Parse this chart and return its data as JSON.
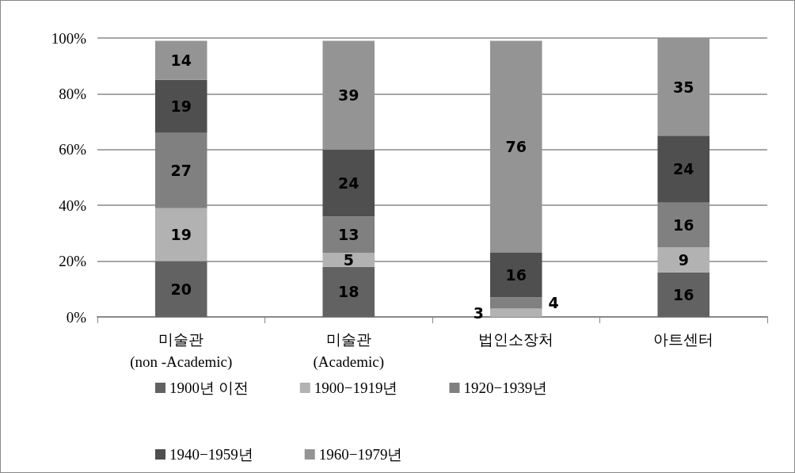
{
  "chart_data": {
    "type": "bar",
    "stacked": true,
    "data_labels": true,
    "grid": "y",
    "legend": "bottom",
    "categories": [
      "미술관\n(non -Academic)",
      "미술관\n(Academic)",
      "법인소장처",
      "아트센터"
    ],
    "ylim": [
      0,
      100
    ],
    "yticks": [
      {
        "value": 0,
        "label": "0%"
      },
      {
        "value": 20,
        "label": "20%"
      },
      {
        "value": 40,
        "label": "40%"
      },
      {
        "value": 60,
        "label": "60%"
      },
      {
        "value": 80,
        "label": "80%"
      },
      {
        "value": 100,
        "label": "100%"
      }
    ],
    "series": [
      {
        "name": "1900년 이전",
        "color": "#626262",
        "values": [
          20,
          18,
          null,
          16
        ]
      },
      {
        "name": "1900−1919년",
        "color": "#b2b2b2",
        "values": [
          19,
          5,
          3,
          9
        ]
      },
      {
        "name": "1920−1939년",
        "color": "#808080",
        "values": [
          27,
          13,
          4,
          16
        ]
      },
      {
        "name": "1940−1959년",
        "color": "#4f4f4f",
        "values": [
          19,
          24,
          16,
          24
        ]
      },
      {
        "name": "1960−1979년",
        "color": "#949494",
        "values": [
          14,
          39,
          76,
          35
        ]
      }
    ]
  }
}
